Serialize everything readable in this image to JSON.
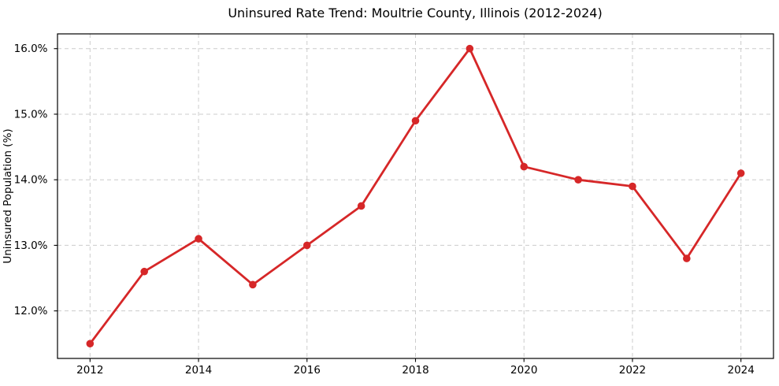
{
  "chart_data": {
    "type": "line",
    "title": "Uninsured Rate Trend: Moultrie County, Illinois (2012-2024)",
    "xlabel": "",
    "ylabel": "Uninsured Population (%)",
    "x": [
      2012,
      2013,
      2014,
      2015,
      2016,
      2017,
      2018,
      2019,
      2020,
      2021,
      2022,
      2023,
      2024
    ],
    "values": [
      11.5,
      12.6,
      13.1,
      12.4,
      13.0,
      13.6,
      14.9,
      16.0,
      14.2,
      14.0,
      13.9,
      12.8,
      14.1
    ],
    "xlim": [
      2011.4,
      2024.6
    ],
    "ylim": [
      11.275,
      16.225
    ],
    "xticks": [
      2012,
      2014,
      2016,
      2018,
      2020,
      2022,
      2024
    ],
    "xtick_labels": [
      "2012",
      "2014",
      "2016",
      "2018",
      "2020",
      "2022",
      "2024"
    ],
    "yticks": [
      12.0,
      13.0,
      14.0,
      15.0,
      16.0
    ],
    "ytick_labels": [
      "12.0%",
      "13.0%",
      "14.0%",
      "15.0%",
      "16.0%"
    ],
    "grid": true,
    "grid_style": "dashed",
    "legend_position": "none",
    "line_color": "#d62728",
    "marker": "circle",
    "marker_color": "#d62728",
    "grid_color": "#cccccc",
    "spine_color": "#000000",
    "text_color": "#000000",
    "background_color": "#ffffff"
  }
}
